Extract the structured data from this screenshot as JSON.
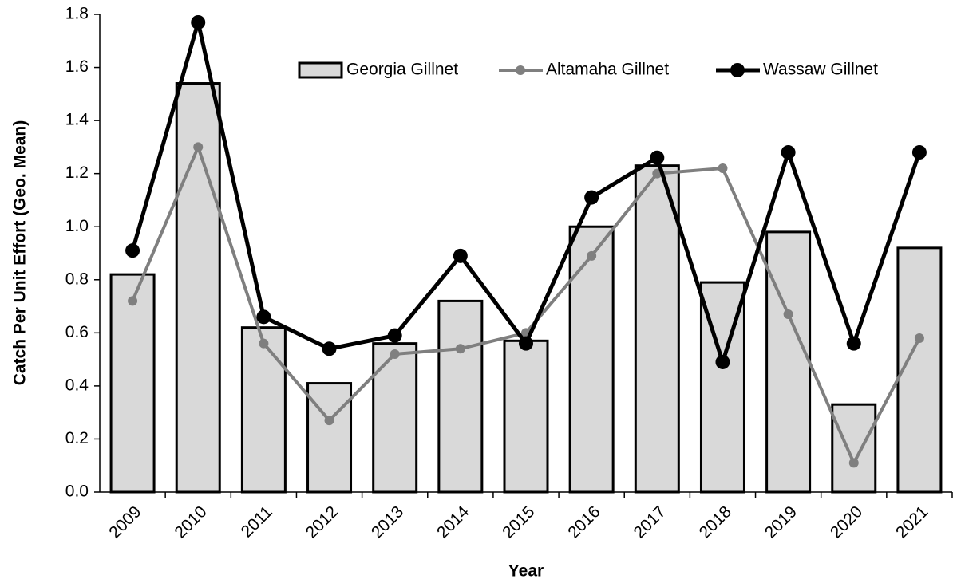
{
  "chart_data": {
    "type": "bar",
    "x_label": "Year",
    "y_label": "Catch Per Unit Effort  (Geo. Mean)",
    "categories": [
      "2009",
      "2010",
      "2011",
      "2012",
      "2013",
      "2014",
      "2015",
      "2016",
      "2017",
      "2018",
      "2019",
      "2020",
      "2021"
    ],
    "ylim": [
      0,
      1.8
    ],
    "yticks": [
      {
        "value": 0,
        "label": "0.0"
      },
      0.2,
      0.4,
      0.6,
      0.8,
      {
        "value": 1,
        "label": "1.0"
      },
      1.2,
      1.4,
      1.6,
      1.8
    ],
    "grid": false,
    "legend": "top-right",
    "series": [
      {
        "name": "Georgia Gillnet",
        "type": "bar",
        "color": "#d9d9d9",
        "values": [
          0.82,
          1.54,
          0.62,
          0.41,
          0.56,
          0.72,
          0.57,
          1.0,
          1.23,
          0.79,
          0.98,
          0.33,
          0.92
        ]
      },
      {
        "name": "Altamaha Gillnet",
        "type": "line",
        "color": "#7f7f7f",
        "values": [
          0.72,
          1.3,
          0.56,
          0.27,
          0.52,
          0.54,
          0.6,
          0.89,
          1.2,
          1.22,
          0.67,
          0.11,
          0.58
        ]
      },
      {
        "name": "Wassaw Gillnet",
        "type": "line",
        "color": "#000000",
        "values": [
          0.91,
          1.77,
          0.66,
          0.54,
          0.59,
          0.89,
          0.56,
          1.11,
          1.26,
          0.49,
          1.28,
          0.56,
          1.28
        ]
      }
    ]
  }
}
